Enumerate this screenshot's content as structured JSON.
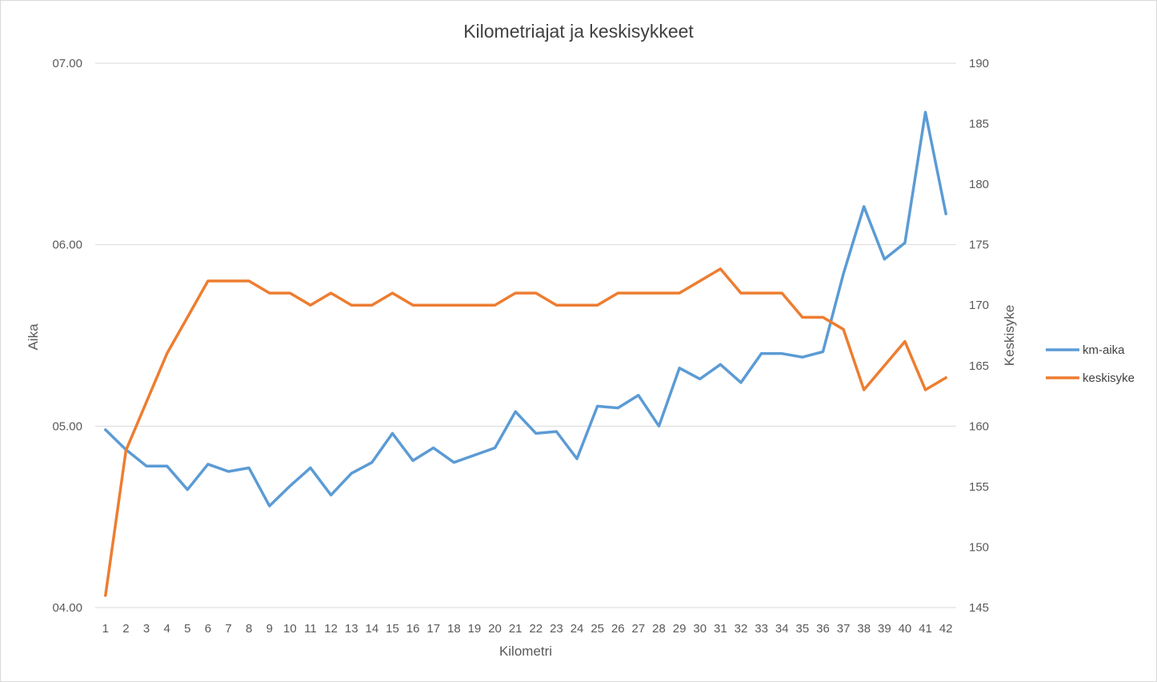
{
  "chart_data": {
    "type": "line",
    "title": "Kilometriajat ja keskisykkeet",
    "xlabel": "Kilometri",
    "ylabel": "Aika",
    "y2label": "Keskisyke",
    "categories": [
      "1",
      "2",
      "3",
      "4",
      "5",
      "6",
      "7",
      "8",
      "9",
      "10",
      "11",
      "12",
      "13",
      "14",
      "15",
      "16",
      "17",
      "18",
      "19",
      "20",
      "21",
      "22",
      "23",
      "24",
      "25",
      "26",
      "27",
      "28",
      "29",
      "30",
      "31",
      "32",
      "33",
      "34",
      "35",
      "36",
      "37",
      "38",
      "39",
      "40",
      "41",
      "42"
    ],
    "y_axis": {
      "min": 4.0,
      "max": 7.0,
      "ticks": [
        "04.00",
        "05.00",
        "06.00",
        "07.00"
      ]
    },
    "y2_axis": {
      "min": 145,
      "max": 190,
      "ticks": [
        "145",
        "150",
        "155",
        "160",
        "165",
        "170",
        "175",
        "180",
        "185",
        "190"
      ]
    },
    "grid": "horizontal",
    "legend_position": "right",
    "series": [
      {
        "name": "km-aika",
        "axis": "left",
        "color": "#5b9bd5",
        "values": [
          4.98,
          4.87,
          4.78,
          4.78,
          4.65,
          4.79,
          4.75,
          4.77,
          4.56,
          4.67,
          4.77,
          4.62,
          4.74,
          4.8,
          4.96,
          4.81,
          4.88,
          4.8,
          4.84,
          4.88,
          5.08,
          4.96,
          4.97,
          4.82,
          5.11,
          5.1,
          5.17,
          5.0,
          5.32,
          5.26,
          5.34,
          5.24,
          5.4,
          5.4,
          5.38,
          5.41,
          5.84,
          6.21,
          5.92,
          6.01,
          6.73,
          6.17
        ]
      },
      {
        "name": "keskisyke",
        "axis": "right",
        "color": "#ed7d31",
        "values": [
          146,
          158,
          162,
          166,
          169,
          172,
          172,
          172,
          171,
          171,
          170,
          171,
          170,
          170,
          171,
          170,
          170,
          170,
          170,
          170,
          171,
          171,
          170,
          170,
          170,
          171,
          171,
          171,
          171,
          172,
          173,
          171,
          171,
          171,
          169,
          169,
          168,
          163,
          165,
          167,
          163,
          164
        ]
      }
    ]
  }
}
